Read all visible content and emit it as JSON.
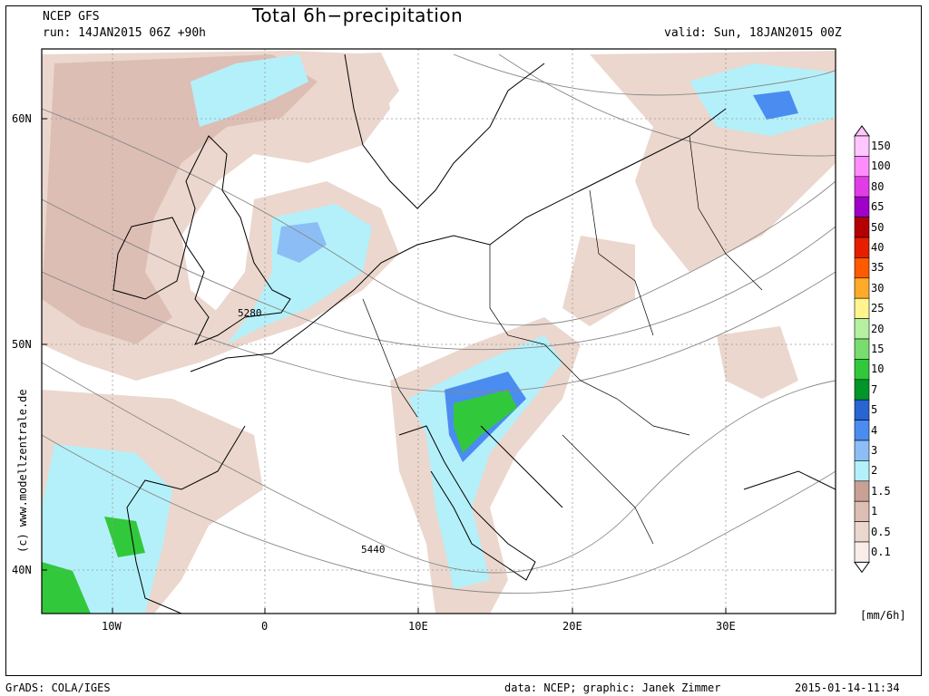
{
  "header": {
    "model": "NCEP GFS",
    "run": "run: 14JAN2015 06Z +90h",
    "title": "Total 6h−precipitation",
    "valid": "valid: Sun, 18JAN2015 00Z"
  },
  "axes": {
    "lat_labels": [
      "60N",
      "50N",
      "40N"
    ],
    "lon_labels": [
      "10W",
      "0",
      "10E",
      "20E",
      "30E"
    ]
  },
  "contour_labels": [
    "5280",
    "5440"
  ],
  "legend": {
    "units": "[mm/6h]",
    "levels": [
      {
        "label": "150",
        "color": "#ffc6ff"
      },
      {
        "label": "100",
        "color": "#ff8cff"
      },
      {
        "label": "80",
        "color": "#e23ce6"
      },
      {
        "label": "65",
        "color": "#a000c8"
      },
      {
        "label": "50",
        "color": "#b40000"
      },
      {
        "label": "40",
        "color": "#e81e00"
      },
      {
        "label": "35",
        "color": "#ff5a00"
      },
      {
        "label": "30",
        "color": "#ffaa28"
      },
      {
        "label": "25",
        "color": "#fff58c"
      },
      {
        "label": "20",
        "color": "#b4f0a0"
      },
      {
        "label": "15",
        "color": "#78dc6e"
      },
      {
        "label": "10",
        "color": "#32c83c"
      },
      {
        "label": "7",
        "color": "#009628"
      },
      {
        "label": "5",
        "color": "#2864d2"
      },
      {
        "label": "4",
        "color": "#4b8cf0"
      },
      {
        "label": "3",
        "color": "#8cbef5"
      },
      {
        "label": "2",
        "color": "#b4f0fa"
      },
      {
        "label": "1.5",
        "color": "#c8a096"
      },
      {
        "label": "1",
        "color": "#dcbeb4"
      },
      {
        "label": "0.5",
        "color": "#ebd7cd"
      },
      {
        "label": "0.1",
        "color": "#f8ede8"
      }
    ]
  },
  "watermark": "(c) www.modellzentrale.de",
  "footer": {
    "software": "GrADS: COLA/IGES",
    "credits": "data: NCEP; graphic: Janek Zimmer",
    "timestamp": "2015-01-14-11:34"
  }
}
